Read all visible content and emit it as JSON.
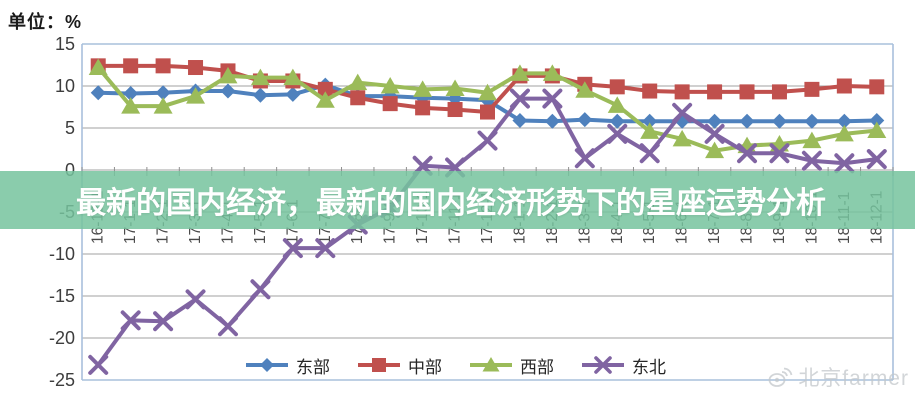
{
  "unit_label": "单位：%",
  "title_overlay": {
    "text": "最新的国内经济，最新的国内经济形势下的星座运势分析",
    "band_color": "rgba(118,195,158,0.85)",
    "text_color": "#ffffff"
  },
  "watermark": {
    "icon": "weibo-eye-icon",
    "text": "北京farmer",
    "color": "#c3c8cb"
  },
  "colors": {
    "frame": "#a8c0dc",
    "grid": "#a0a0a0",
    "axis": "#8f8f8f",
    "y_label": "#3d3d3d",
    "x_label": "#4a4a4a"
  },
  "chart_data": {
    "type": "line",
    "title": "",
    "xlabel": "",
    "ylabel": "%",
    "ylim": [
      -25,
      15
    ],
    "y_ticks": [
      15,
      10,
      5,
      0,
      -5,
      -10,
      -15,
      -20,
      -25
    ],
    "grid": true,
    "legend_position": "bottom",
    "x_labels": [
      "16-12-1",
      "17-1-1",
      "17-2-1",
      "17-3-1",
      "17-4-1",
      "17-5-1",
      "17-6-1",
      "17-7-1",
      "17-8-1",
      "17-9-1",
      "17-10-1",
      "17-11-1",
      "17-12-1",
      "18-1-1",
      "18-2-1",
      "18-3-1",
      "18-4-1",
      "18-5-1",
      "18-6-1",
      "18-7-1",
      "18-8-1",
      "18-9-1",
      "18-10-1",
      "18-11-1",
      "18-12-1"
    ],
    "series": [
      {
        "name": "东部",
        "color": "#4F81BD",
        "marker": "diamond",
        "values": [
          9.2,
          9.1,
          9.2,
          9.4,
          9.4,
          8.9,
          9.0,
          10.1,
          8.8,
          8.8,
          8.6,
          8.5,
          8.3,
          5.9,
          5.8,
          6.0,
          5.8,
          5.8,
          5.8,
          5.8,
          5.8,
          5.8,
          5.8,
          5.8,
          5.9
        ]
      },
      {
        "name": "中部",
        "color": "#C0504D",
        "marker": "square",
        "values": [
          12.4,
          12.4,
          12.4,
          12.2,
          11.8,
          10.6,
          10.6,
          9.6,
          8.6,
          7.9,
          7.4,
          7.2,
          6.9,
          11.2,
          11.2,
          10.2,
          9.9,
          9.4,
          9.3,
          9.3,
          9.3,
          9.3,
          9.6,
          10.0,
          9.9
        ]
      },
      {
        "name": "西部",
        "color": "#9BBB59",
        "marker": "triangle",
        "values": [
          12.2,
          7.6,
          7.6,
          8.8,
          11.2,
          11.0,
          11.0,
          8.3,
          10.4,
          10.0,
          9.6,
          9.7,
          9.2,
          11.5,
          11.5,
          9.5,
          7.7,
          4.6,
          3.7,
          2.3,
          2.9,
          3.1,
          3.5,
          4.3,
          4.7
        ]
      },
      {
        "name": "东北",
        "color": "#8064A2",
        "marker": "x",
        "values": [
          -23.2,
          -17.9,
          -18.0,
          -15.4,
          -18.6,
          -14.2,
          -9.3,
          -9.3,
          -6.5,
          -4.5,
          0.5,
          0.3,
          3.5,
          8.5,
          8.5,
          1.4,
          4.3,
          2.0,
          6.8,
          4.3,
          2.0,
          2.0,
          1.1,
          0.8,
          1.3
        ]
      }
    ]
  }
}
